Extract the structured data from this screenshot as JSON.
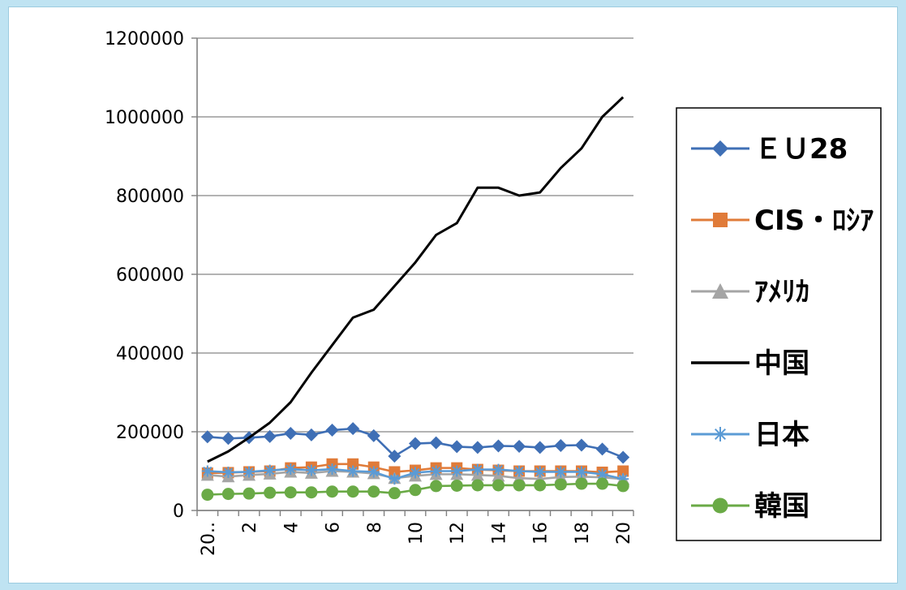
{
  "chart_data": {
    "type": "line",
    "x": [
      "20..",
      "",
      "2",
      "",
      "4",
      "",
      "6",
      "",
      "8",
      "",
      "10",
      "",
      "12",
      "",
      "14",
      "",
      "16",
      "",
      "18",
      "",
      "20"
    ],
    "xtick_labels": [
      "20..",
      "2",
      "4",
      "6",
      "8",
      "10",
      "12",
      "14",
      "16",
      "18",
      "20"
    ],
    "ylim": [
      0,
      1200000
    ],
    "yticks": [
      0,
      200000,
      400000,
      600000,
      800000,
      1000000,
      1200000
    ],
    "ytick_labels": [
      "0",
      "200000",
      "400000",
      "600000",
      "800000",
      "1000000",
      "1200000"
    ],
    "grid": true,
    "legend_position": "right",
    "series": [
      {
        "name": "ＥＵ28",
        "color": "#3f6fb5",
        "marker": "diamond",
        "values": [
          187000,
          183000,
          185000,
          188000,
          196000,
          192000,
          204000,
          208000,
          190000,
          138000,
          170000,
          172000,
          162000,
          160000,
          164000,
          163000,
          160000,
          165000,
          166000,
          156000,
          135000
        ]
      },
      {
        "name": "CIS・ﾛｼｱ",
        "color": "#e07b39",
        "marker": "square",
        "values": [
          95000,
          96000,
          98000,
          100000,
          108000,
          110000,
          118000,
          118000,
          110000,
          98000,
          102000,
          108000,
          108000,
          104000,
          102000,
          100000,
          100000,
          100000,
          100000,
          97000,
          100000
        ]
      },
      {
        "name": "ｱﾒﾘｶ",
        "color": "#a5a5a5",
        "marker": "triangle",
        "values": [
          90000,
          86000,
          90000,
          93000,
          98000,
          95000,
          100000,
          98000,
          94000,
          82000,
          88000,
          92000,
          92000,
          90000,
          88000,
          82000,
          80000,
          85000,
          86000,
          84000,
          80000
        ]
      },
      {
        "name": "中国",
        "color": "#000000",
        "marker": "none",
        "values": [
          124000,
          150000,
          185000,
          223000,
          275000,
          350000,
          420000,
          490000,
          510000,
          570000,
          630000,
          700000,
          730000,
          820000,
          820000,
          800000,
          808000,
          870000,
          920000,
          1000000,
          1050000
        ]
      },
      {
        "name": "日本",
        "color": "#5b9bd5",
        "marker": "star",
        "values": [
          100000,
          97000,
          98000,
          102000,
          105000,
          102000,
          105000,
          100000,
          98000,
          80000,
          96000,
          100000,
          100000,
          104000,
          104000,
          100000,
          98000,
          98000,
          98000,
          92000,
          80000
        ]
      },
      {
        "name": "韓国",
        "color": "#6aaa46",
        "marker": "circle",
        "values": [
          40000,
          42000,
          43000,
          45000,
          46000,
          46000,
          48000,
          48000,
          48000,
          44000,
          52000,
          62000,
          63000,
          64000,
          64000,
          64000,
          64000,
          66000,
          68000,
          68000,
          62000
        ]
      }
    ]
  }
}
